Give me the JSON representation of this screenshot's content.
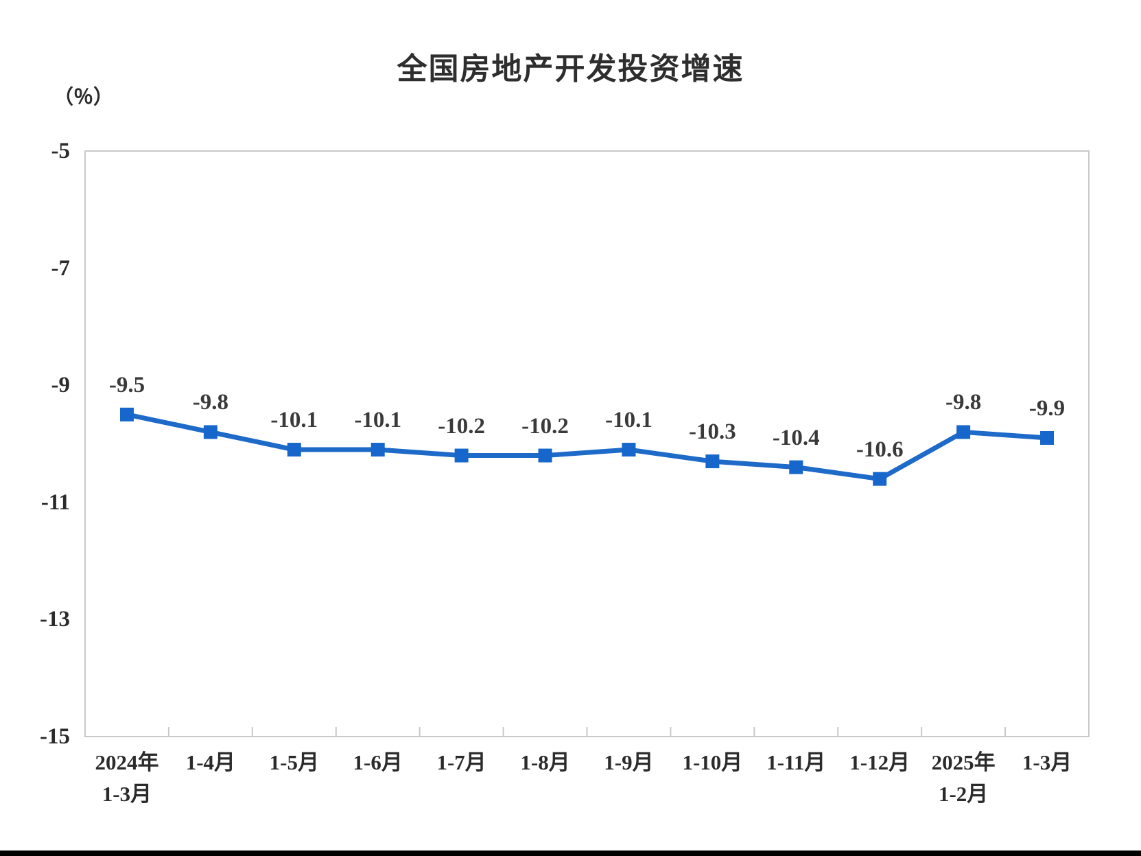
{
  "chart_data": {
    "type": "line",
    "title": "全国房地产开发投资增速",
    "ylabel": "（％）",
    "xlabel": "",
    "categories": [
      "2024年\n1-3月",
      "1-4月",
      "1-5月",
      "1-6月",
      "1-7月",
      "1-8月",
      "1-9月",
      "1-10月",
      "1-11月",
      "1-12月",
      "2025年\n1-2月",
      "1-3月"
    ],
    "values": [
      -9.5,
      -9.8,
      -10.1,
      -10.1,
      -10.2,
      -10.2,
      -10.1,
      -10.3,
      -10.4,
      -10.6,
      -9.8,
      -9.9
    ],
    "data_labels": [
      "-9.5",
      "-9.8",
      "-10.1",
      "-10.1",
      "-10.2",
      "-10.2",
      "-10.1",
      "-10.3",
      "-10.4",
      "-10.6",
      "-9.8",
      "-9.9"
    ],
    "ylim": [
      -15,
      -5
    ],
    "yticks": [
      -5,
      -7,
      -9,
      -11,
      -13,
      -15
    ],
    "ytick_labels": [
      "-5",
      "-7",
      "-9",
      "-11",
      "-13",
      "-15"
    ],
    "grid": false,
    "legend": "none",
    "colors": {
      "series": "#1E6AC8",
      "marker": "#1666CC",
      "plot_border": "#C9C9C9",
      "axis_tick": "#C9C9C9",
      "text": "#2B2B2B"
    }
  }
}
